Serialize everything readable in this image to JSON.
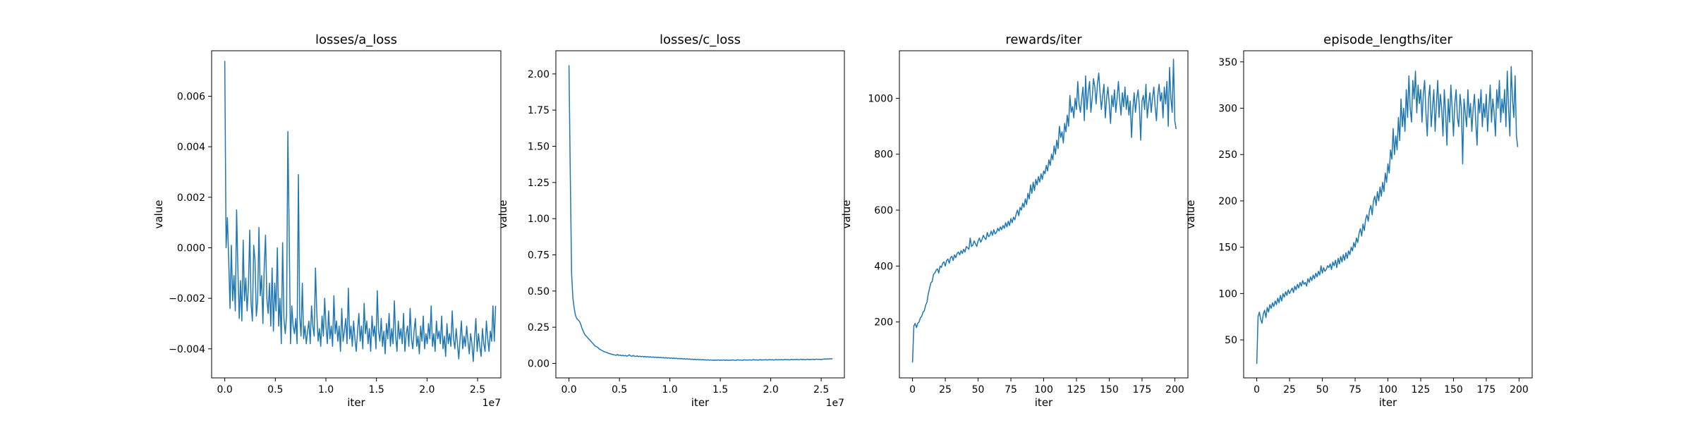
{
  "figure": {
    "line_color": "#1f77b4"
  },
  "chart_data": [
    {
      "type": "line",
      "title": "losses/a_loss",
      "xlabel": "iter",
      "ylabel": "value",
      "x_offset_label": "1e7",
      "xlim": [
        -1300000,
        27300000
      ],
      "ylim": [
        -0.00515,
        0.0078
      ],
      "xticks": [
        0,
        5000000,
        10000000,
        15000000,
        20000000,
        25000000
      ],
      "xtick_labels": [
        "0.0",
        "0.5",
        "1.0",
        "1.5",
        "2.0",
        "2.5"
      ],
      "yticks": [
        -0.004,
        -0.002,
        0.0,
        0.002,
        0.004,
        0.006
      ],
      "ytick_labels": [
        "−0.004",
        "−0.002",
        "0.000",
        "0.002",
        "0.004",
        "0.006"
      ],
      "grid": false,
      "series": [
        {
          "x_start": 0,
          "x_step": 130000,
          "values": [
            0.0074,
            0.0,
            0.0012,
            -0.0005,
            -0.0024,
            0.0001,
            -0.0021,
            -0.0011,
            -0.0025,
            0.0015,
            -0.0009,
            -0.0028,
            -0.0013,
            -0.0029,
            0.0003,
            -0.0021,
            -0.0012,
            -0.0025,
            -0.0015,
            0.0007,
            -0.0022,
            -0.0029,
            0.0001,
            -0.0005,
            -0.0027,
            -0.0021,
            0.0008,
            -0.0019,
            -0.0011,
            -0.003,
            -0.0008,
            0.0005,
            -0.002,
            -0.0026,
            -0.0014,
            -0.0031,
            -0.0008,
            -0.0033,
            -0.0014,
            -0.0025,
            0.0,
            -0.0031,
            -0.002,
            -0.0038,
            0.0002,
            -0.0028,
            -0.0034,
            -0.0027,
            0.0046,
            0.0005,
            -0.0038,
            -0.0023,
            -0.0031,
            -0.0034,
            -0.0028,
            -0.0038,
            0.0029,
            -0.0027,
            -0.0035,
            -0.0014,
            -0.0036,
            -0.0031,
            -0.0038,
            -0.0033,
            -0.0029,
            -0.0038,
            -0.0023,
            -0.0031,
            -0.0035,
            -0.0008,
            -0.0026,
            -0.0037,
            -0.0032,
            -0.0039,
            -0.0027,
            -0.0035,
            -0.002,
            -0.0031,
            -0.0038,
            -0.0025,
            -0.0036,
            -0.0031,
            -0.0039,
            -0.0019,
            -0.0034,
            -0.0029,
            -0.0037,
            -0.0031,
            -0.0041,
            -0.0024,
            -0.0037,
            -0.0033,
            -0.0028,
            -0.0038,
            -0.0016,
            -0.0036,
            -0.0031,
            -0.0039,
            -0.0029,
            -0.0036,
            -0.0041,
            -0.0033,
            -0.0026,
            -0.0037,
            -0.0031,
            -0.004,
            -0.0022,
            -0.0034,
            -0.0029,
            -0.0038,
            -0.0032,
            -0.0041,
            -0.0027,
            -0.0035,
            -0.0031,
            -0.004,
            -0.0017,
            -0.0033,
            -0.0037,
            -0.0028,
            -0.0039,
            -0.0033,
            -0.0042,
            -0.003,
            -0.0036,
            -0.0026,
            -0.0039,
            -0.0032,
            -0.0038,
            -0.0021,
            -0.0035,
            -0.0041,
            -0.0029,
            -0.0036,
            -0.0032,
            -0.0038,
            -0.0026,
            -0.0041,
            -0.0034,
            -0.0031,
            -0.0039,
            -0.0024,
            -0.0036,
            -0.004,
            -0.0033,
            -0.0028,
            -0.0039,
            -0.0035,
            -0.0042,
            -0.0031,
            -0.0037,
            -0.0027,
            -0.004,
            -0.0034,
            -0.0038,
            -0.003,
            -0.0036,
            -0.0023,
            -0.0039,
            -0.0034,
            -0.0041,
            -0.0029,
            -0.0036,
            -0.0033,
            -0.0038,
            -0.0027,
            -0.004,
            -0.0035,
            -0.0043,
            -0.003,
            -0.0038,
            -0.0034,
            -0.0039,
            -0.0025,
            -0.0036,
            -0.004,
            -0.0032,
            -0.0038,
            -0.0044,
            -0.0036,
            -0.0029,
            -0.004,
            -0.0035,
            -0.0039,
            -0.0031,
            -0.0037,
            -0.0042,
            -0.0034,
            -0.0038,
            -0.0045,
            -0.0036,
            -0.0028,
            -0.0041,
            -0.0034,
            -0.0039,
            -0.0043,
            -0.0032,
            -0.0038,
            -0.0041,
            -0.0029,
            -0.0036,
            -0.0041,
            -0.0033,
            -0.0037,
            -0.0023,
            -0.0037,
            -0.0023
          ]
        }
      ]
    },
    {
      "type": "line",
      "title": "losses/c_loss",
      "xlabel": "iter",
      "ylabel": "value",
      "x_offset_label": "1e7",
      "xlim": [
        -1300000,
        27300000
      ],
      "ylim": [
        -0.1,
        2.16
      ],
      "xticks": [
        0,
        5000000,
        10000000,
        15000000,
        20000000,
        25000000
      ],
      "xtick_labels": [
        "0.0",
        "0.5",
        "1.0",
        "1.5",
        "2.0",
        "2.5"
      ],
      "yticks": [
        0.0,
        0.25,
        0.5,
        0.75,
        1.0,
        1.25,
        1.5,
        1.75,
        2.0
      ],
      "ytick_labels": [
        "0.00",
        "0.25",
        "0.50",
        "0.75",
        "1.00",
        "1.25",
        "1.50",
        "1.75",
        "2.00"
      ],
      "grid": false,
      "series": [
        {
          "x_start": 0,
          "x_step": 130000,
          "values": [
            2.06,
            1.3,
            0.62,
            0.45,
            0.38,
            0.33,
            0.31,
            0.3,
            0.29,
            0.27,
            0.24,
            0.22,
            0.2,
            0.19,
            0.18,
            0.17,
            0.16,
            0.15,
            0.14,
            0.13,
            0.12,
            0.115,
            0.11,
            0.1,
            0.095,
            0.09,
            0.085,
            0.08,
            0.078,
            0.075,
            0.07,
            0.068,
            0.065,
            0.062,
            0.06,
            0.058,
            0.056,
            0.062,
            0.055,
            0.058,
            0.053,
            0.056,
            0.052,
            0.055,
            0.05,
            0.053,
            0.06,
            0.052,
            0.049,
            0.055,
            0.05,
            0.048,
            0.052,
            0.047,
            0.05,
            0.046,
            0.049,
            0.045,
            0.048,
            0.044,
            0.047,
            0.043,
            0.046,
            0.042,
            0.045,
            0.041,
            0.044,
            0.04,
            0.043,
            0.039,
            0.042,
            0.038,
            0.041,
            0.037,
            0.04,
            0.036,
            0.039,
            0.035,
            0.038,
            0.034,
            0.037,
            0.033,
            0.036,
            0.032,
            0.035,
            0.031,
            0.034,
            0.03,
            0.033,
            0.029,
            0.032,
            0.028,
            0.031,
            0.027,
            0.03,
            0.026,
            0.029,
            0.025,
            0.028,
            0.025,
            0.027,
            0.024,
            0.026,
            0.024,
            0.025,
            0.023,
            0.025,
            0.022,
            0.024,
            0.022,
            0.023,
            0.021,
            0.023,
            0.022,
            0.024,
            0.021,
            0.023,
            0.022,
            0.024,
            0.021,
            0.023,
            0.022,
            0.021,
            0.023,
            0.022,
            0.024,
            0.022,
            0.021,
            0.023,
            0.025,
            0.022,
            0.024,
            0.021,
            0.023,
            0.025,
            0.022,
            0.024,
            0.023,
            0.025,
            0.022,
            0.024,
            0.026,
            0.023,
            0.025,
            0.022,
            0.024,
            0.026,
            0.023,
            0.025,
            0.024,
            0.026,
            0.023,
            0.025,
            0.027,
            0.024,
            0.026,
            0.023,
            0.025,
            0.027,
            0.024,
            0.026,
            0.025,
            0.027,
            0.024,
            0.026,
            0.028,
            0.025,
            0.027,
            0.024,
            0.026,
            0.028,
            0.025,
            0.027,
            0.026,
            0.028,
            0.025,
            0.027,
            0.029,
            0.026,
            0.028,
            0.025,
            0.027,
            0.029,
            0.026,
            0.028,
            0.027,
            0.029,
            0.026,
            0.028,
            0.03,
            0.027,
            0.029,
            0.026,
            0.028,
            0.03,
            0.031,
            0.029,
            0.032,
            0.03,
            0.033,
            0.031,
            0.033
          ]
        }
      ]
    },
    {
      "type": "line",
      "title": "rewards/iter",
      "xlabel": "iter",
      "ylabel": "value",
      "xlim": [
        -10,
        210
      ],
      "ylim": [
        0,
        1170
      ],
      "xticks": [
        0,
        25,
        50,
        75,
        100,
        125,
        150,
        175,
        200
      ],
      "xtick_labels": [
        "0",
        "25",
        "50",
        "75",
        "100",
        "125",
        "150",
        "175",
        "200"
      ],
      "yticks": [
        200,
        400,
        600,
        800,
        1000
      ],
      "ytick_labels": [
        "200",
        "400",
        "600",
        "800",
        "1000"
      ],
      "grid": false,
      "series": [
        {
          "x_start": 0,
          "x_step": 1,
          "values": [
            55,
            185,
            195,
            180,
            195,
            200,
            215,
            220,
            235,
            240,
            260,
            270,
            300,
            320,
            340,
            345,
            370,
            375,
            385,
            390,
            375,
            400,
            395,
            410,
            415,
            400,
            420,
            425,
            410,
            430,
            435,
            420,
            440,
            430,
            445,
            450,
            440,
            455,
            445,
            460,
            450,
            470,
            465,
            460,
            500,
            470,
            475,
            490,
            480,
            470,
            490,
            500,
            485,
            495,
            510,
            500,
            495,
            520,
            505,
            510,
            525,
            510,
            530,
            515,
            520,
            535,
            525,
            540,
            530,
            545,
            535,
            555,
            540,
            560,
            545,
            570,
            555,
            575,
            565,
            585,
            600,
            580,
            610,
            600,
            625,
            610,
            640,
            620,
            660,
            640,
            690,
            660,
            700,
            670,
            710,
            690,
            720,
            700,
            730,
            710,
            740,
            730,
            760,
            740,
            780,
            760,
            800,
            780,
            830,
            800,
            850,
            820,
            900,
            860,
            880,
            840,
            910,
            880,
            940,
            900,
            1010,
            950,
            970,
            930,
            1000,
            960,
            1060,
            980,
            950,
            1000,
            1040,
            920,
            1080,
            960,
            1020,
            1060,
            950,
            1000,
            1070,
            1040,
            980,
            1050,
            1090,
            1020,
            960,
            1010,
            1050,
            930,
            1000,
            1040,
            980,
            910,
            1010,
            970,
            1030,
            950,
            1000,
            1060,
            990,
            940,
            1020,
            970,
            1040,
            960,
            1010,
            940,
            990,
            860,
            960,
            1020,
            950,
            1000,
            1030,
            970,
            850,
            990,
            1010,
            960,
            1050,
            930,
            980,
            1020,
            950,
            1000,
            1040,
            970,
            920,
            1010,
            1050,
            990,
            1020,
            930,
            1040,
            980,
            1060,
            900,
            1110,
            1000,
            950,
            1140,
            920,
            890
          ]
        }
      ]
    },
    {
      "type": "line",
      "title": "episode_lengths/iter",
      "xlabel": "iter",
      "ylabel": "value",
      "xlim": [
        -10,
        210
      ],
      "ylim": [
        9,
        362
      ],
      "xticks": [
        0,
        25,
        50,
        75,
        100,
        125,
        150,
        175,
        200
      ],
      "xtick_labels": [
        "0",
        "25",
        "50",
        "75",
        "100",
        "125",
        "150",
        "175",
        "200"
      ],
      "yticks": [
        50,
        100,
        150,
        200,
        250,
        300,
        350
      ],
      "ytick_labels": [
        "50",
        "100",
        "150",
        "200",
        "250",
        "300",
        "350"
      ],
      "grid": false,
      "series": [
        {
          "x_start": 0,
          "x_step": 1,
          "values": [
            24,
            75,
            80,
            72,
            68,
            78,
            82,
            74,
            85,
            80,
            88,
            84,
            90,
            86,
            92,
            88,
            95,
            90,
            98,
            92,
            100,
            96,
            102,
            98,
            104,
            100,
            103,
            106,
            101,
            108,
            104,
            110,
            106,
            112,
            108,
            114,
            110,
            112,
            108,
            116,
            112,
            118,
            114,
            120,
            116,
            122,
            118,
            124,
            120,
            130,
            122,
            128,
            124,
            126,
            130,
            128,
            132,
            126,
            134,
            130,
            136,
            128,
            138,
            132,
            140,
            134,
            142,
            136,
            144,
            138,
            146,
            142,
            150,
            146,
            155,
            150,
            160,
            155,
            165,
            170,
            162,
            175,
            168,
            180,
            185,
            178,
            190,
            195,
            185,
            200,
            205,
            195,
            210,
            200,
            215,
            205,
            220,
            210,
            230,
            220,
            240,
            230,
            255,
            245,
            278,
            250,
            270,
            255,
            290,
            265,
            310,
            280,
            300,
            275,
            320,
            290,
            335,
            300,
            285,
            330,
            310,
            340,
            295,
            325,
            305,
            320,
            285,
            315,
            330,
            295,
            270,
            310,
            325,
            280,
            300,
            320,
            275,
            305,
            330,
            290,
            315,
            300,
            270,
            320,
            295,
            260,
            310,
            285,
            325,
            300,
            270,
            305,
            320,
            290,
            280,
            315,
            300,
            240,
            310,
            295,
            280,
            320,
            290,
            305,
            275,
            300,
            315,
            285,
            260,
            310,
            295,
            320,
            280,
            305,
            290,
            315,
            275,
            300,
            325,
            285,
            310,
            295,
            270,
            320,
            300,
            330,
            285,
            310,
            295,
            320,
            280,
            340,
            300,
            270,
            345,
            310,
            290,
            335,
            270,
            258
          ]
        }
      ]
    }
  ]
}
